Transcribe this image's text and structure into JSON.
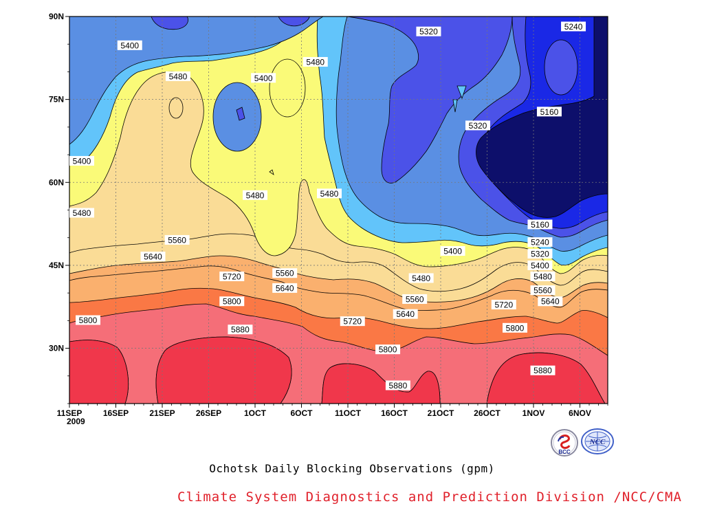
{
  "chart_data": {
    "type": "heatmap",
    "title": "Ochotsk Daily Blocking Observations (gpm)",
    "x_tick_labels": [
      "11SEP",
      "16SEP",
      "21SEP",
      "26SEP",
      "1OCT",
      "6OCT",
      "11OCT",
      "16OCT",
      "21OCT",
      "26OCT",
      "1NOV",
      "6NOV"
    ],
    "x_year_label": "2009",
    "y_tick_labels": [
      "30N",
      "45N",
      "60N",
      "75N",
      "90N"
    ],
    "y_ticks": [
      30,
      45,
      60,
      75,
      90
    ],
    "xlim_days": [
      0,
      58
    ],
    "ylim_lat": [
      20,
      90
    ],
    "grid": "dotted",
    "contour_interval": 80,
    "contour_levels": [
      5160,
      5240,
      5320,
      5400,
      5480,
      5560,
      5640,
      5720,
      5800,
      5880
    ],
    "fill_colors": {
      "below_5160": "#0d0f6b",
      "5160_5240": "#1a28e6",
      "5240_5320": "#4b52e8",
      "5320_5400": "#5a8fe3",
      "5400_5480": "#62c4fa",
      "5480_5560": "#fafa78",
      "5560_5640": "#fadc96",
      "5640_5720": "#fab06e",
      "5720_5800": "#fa7845",
      "5800_5880": "#f56e78",
      "above_5880": "#f0374b"
    },
    "contour_labels": [
      {
        "value": "5400",
        "day": 6.5,
        "lat": 84.8
      },
      {
        "value": "5480",
        "day": 11.7,
        "lat": 79.2
      },
      {
        "value": "5400",
        "day": 20.9,
        "lat": 78.9
      },
      {
        "value": "5480",
        "day": 26.5,
        "lat": 81.8
      },
      {
        "value": "5320",
        "day": 38.7,
        "lat": 87.3
      },
      {
        "value": "5240",
        "day": 54.3,
        "lat": 88.2
      },
      {
        "value": "5320",
        "day": 44.0,
        "lat": 70.3
      },
      {
        "value": "5160",
        "day": 51.7,
        "lat": 72.8
      },
      {
        "value": "5400",
        "day": 0.1,
        "lat": 63.9
      },
      {
        "value": "5480",
        "day": 20.0,
        "lat": 57.7
      },
      {
        "value": "5480",
        "day": 28.0,
        "lat": 58.0
      },
      {
        "value": "5480",
        "day": 0.2,
        "lat": 54.5
      },
      {
        "value": "5400",
        "day": 41.3,
        "lat": 47.6
      },
      {
        "value": "5160",
        "day": 50.7,
        "lat": 52.4
      },
      {
        "value": "5240",
        "day": 50.7,
        "lat": 49.2
      },
      {
        "value": "5320",
        "day": 50.7,
        "lat": 47.1
      },
      {
        "value": "5400",
        "day": 50.7,
        "lat": 45.0
      },
      {
        "value": "5480",
        "day": 51.0,
        "lat": 43.0
      },
      {
        "value": "5560",
        "day": 51.0,
        "lat": 40.5
      },
      {
        "value": "5640",
        "day": 51.8,
        "lat": 38.5
      },
      {
        "value": "5560",
        "day": 11.6,
        "lat": 49.6
      },
      {
        "value": "5640",
        "day": 9.0,
        "lat": 46.6
      },
      {
        "value": "5720",
        "day": 17.5,
        "lat": 43.0
      },
      {
        "value": "5560",
        "day": 23.2,
        "lat": 43.6
      },
      {
        "value": "5640",
        "day": 23.2,
        "lat": 40.9
      },
      {
        "value": "5800",
        "day": 17.5,
        "lat": 38.5
      },
      {
        "value": "5800",
        "day": 2.0,
        "lat": 35.1
      },
      {
        "value": "5880",
        "day": 18.4,
        "lat": 33.4
      },
      {
        "value": "5480",
        "day": 37.9,
        "lat": 42.7
      },
      {
        "value": "5560",
        "day": 37.2,
        "lat": 38.9
      },
      {
        "value": "5640",
        "day": 36.2,
        "lat": 36.2
      },
      {
        "value": "5720",
        "day": 30.5,
        "lat": 34.9
      },
      {
        "value": "5800",
        "day": 34.3,
        "lat": 29.8
      },
      {
        "value": "5880",
        "day": 35.4,
        "lat": 23.3
      },
      {
        "value": "5720",
        "day": 46.8,
        "lat": 37.9
      },
      {
        "value": "5800",
        "day": 48.0,
        "lat": 33.7
      },
      {
        "value": "5880",
        "day": 51.0,
        "lat": 26.0
      }
    ]
  },
  "footer": {
    "credit": "Climate System Diagnostics and Prediction Division /NCC/CMA"
  },
  "logos": {
    "left_text": "BCC",
    "right_text": "NCC"
  }
}
